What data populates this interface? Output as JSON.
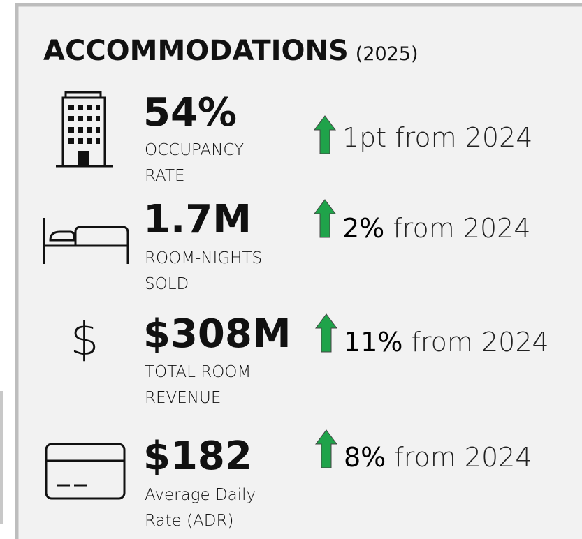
{
  "header": {
    "title": "ACCOMMODATIONS",
    "subtitle": "(2025)"
  },
  "metrics": [
    {
      "value": "54%",
      "label": [
        "OCCUPANCY",
        "RATE"
      ],
      "change": "1pt",
      "comparison": "from 2024",
      "emphasis": false
    },
    {
      "value": "1.7M",
      "label": [
        "ROOM-NIGHTS",
        "SOLD"
      ],
      "change": "2%",
      "comparison": "from 2024",
      "emphasis": true
    },
    {
      "value": "$308M",
      "label": [
        "TOTAL ROOM",
        "REVENUE"
      ],
      "change": "11%",
      "comparison": "from 2024",
      "emphasis": true
    },
    {
      "value": "$182",
      "label": [
        "Average Daily",
        "Rate (ADR)"
      ],
      "change": "8%",
      "comparison": "from 2024",
      "emphasis": true
    }
  ],
  "value_color": "#5f5ff0",
  "arrow_color": "#1fa34a"
}
